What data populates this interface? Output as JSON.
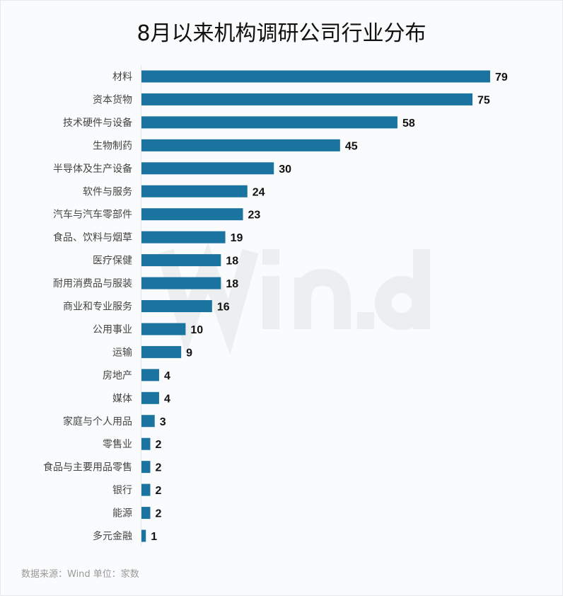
{
  "chart_data": {
    "type": "bar",
    "orientation": "horizontal",
    "title": "8月以来机构调研公司行业分布",
    "categories": [
      "材料",
      "资本货物",
      "技术硬件与设备",
      "生物制药",
      "半导体及生产设备",
      "软件与服务",
      "汽车与汽车零部件",
      "食品、饮料与烟草",
      "医疗保健",
      "耐用消费品与服装",
      "商业和专业服务",
      "公用事业",
      "运输",
      "房地产",
      "媒体",
      "家庭与个人用品",
      "零售业",
      "食品与主要用品零售",
      "银行",
      "能源",
      "多元金融"
    ],
    "values": [
      79,
      75,
      58,
      45,
      30,
      24,
      23,
      19,
      18,
      18,
      16,
      10,
      9,
      4,
      4,
      3,
      2,
      2,
      2,
      2,
      1
    ],
    "bar_color": "#1b73a0",
    "grid": false,
    "legend": "none",
    "xlim": [
      0,
      80
    ]
  },
  "source": "数据来源：Wind  单位：家数",
  "watermark": "Win.d"
}
